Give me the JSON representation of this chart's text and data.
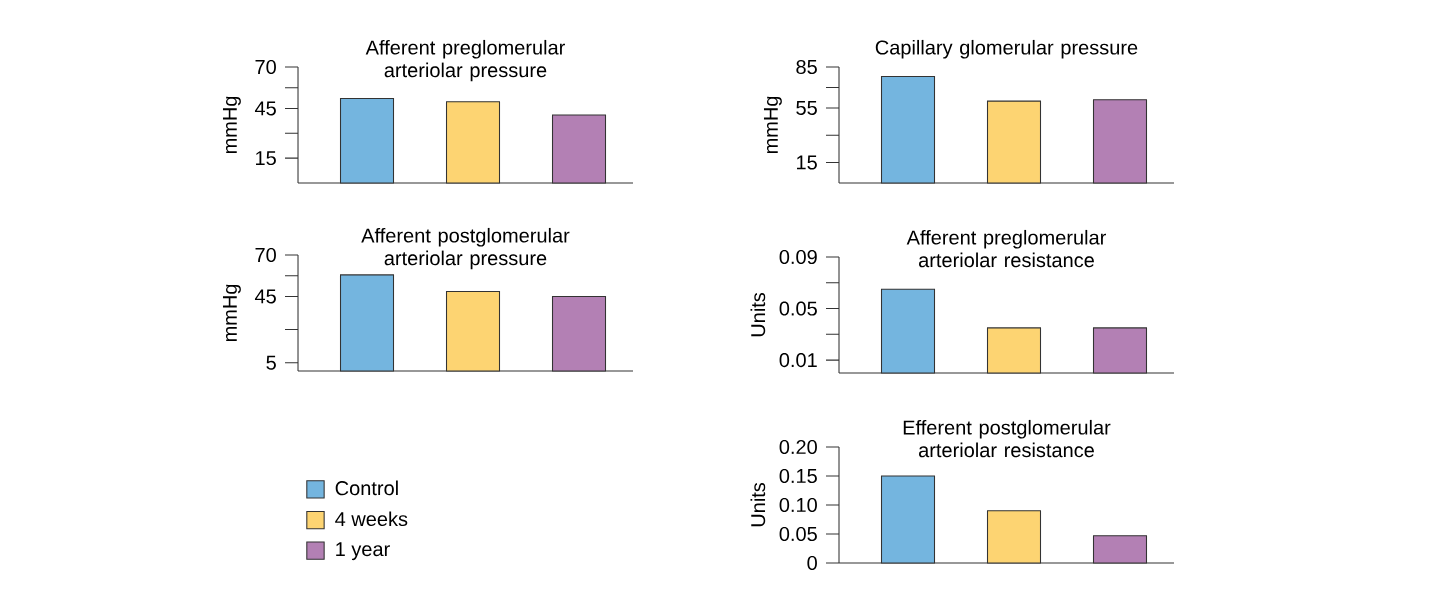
{
  "chart_data": [
    {
      "type": "bar",
      "title": "Afferent preglomerular arteriolar pressure",
      "ylabel": "mmHg",
      "categories": [
        null
      ],
      "ylim": [
        0,
        70
      ],
      "yticks": [
        15,
        {
          "value": 30,
          "label": null
        },
        45,
        {
          "value": 57.5,
          "label": null
        },
        70
      ],
      "series": [
        {
          "color": "#74b5df",
          "values": [
            51
          ]
        },
        {
          "color": "#fdd472",
          "values": [
            49
          ]
        },
        {
          "color": "#b380b4",
          "values": [
            41
          ]
        }
      ]
    },
    {
      "type": "bar",
      "title": "Capillary glomerular pressure",
      "ylabel": "mmHg",
      "categories": [
        null
      ],
      "ylim": [
        0,
        85
      ],
      "yticks": [
        15,
        {
          "value": 35,
          "label": null
        },
        55,
        {
          "value": 70,
          "label": null
        },
        85
      ],
      "series": [
        {
          "color": "#74b5df",
          "values": [
            78
          ]
        },
        {
          "color": "#fdd472",
          "values": [
            60
          ]
        },
        {
          "color": "#b380b4",
          "values": [
            61
          ]
        }
      ]
    },
    {
      "type": "bar",
      "title": "Afferent postglomerular arteriolar pressure",
      "ylabel": "mmHg",
      "categories": [
        null
      ],
      "ylim": [
        0,
        70
      ],
      "yticks": [
        5,
        {
          "value": 25,
          "label": null
        },
        45,
        {
          "value": 57.5,
          "label": null
        },
        70
      ],
      "legend": "bottom",
      "series": [
        {
          "name": "Control",
          "color": "#74b5df",
          "values": [
            58
          ]
        },
        {
          "name": "4 weeks",
          "color": "#fdd472",
          "values": [
            48
          ]
        },
        {
          "name": "1 year",
          "color": "#b380b4",
          "values": [
            45
          ]
        }
      ]
    },
    {
      "type": "bar",
      "title": "Afferent preglomerular arteriolar resistance",
      "ylabel": "Units",
      "categories": [
        null
      ],
      "ylim": [
        0,
        0.09
      ],
      "yticks": [
        0.01,
        {
          "value": 0.03,
          "label": null
        },
        0.05,
        {
          "value": 0.07,
          "label": null
        },
        0.09
      ],
      "series": [
        {
          "color": "#74b5df",
          "values": [
            0.065
          ]
        },
        {
          "color": "#fdd472",
          "values": [
            0.035
          ]
        },
        {
          "color": "#b380b4",
          "values": [
            0.035
          ]
        }
      ]
    },
    {
      "type": "bar",
      "title": "Efferent postglomerular arteriolar resistance",
      "ylabel": "Units",
      "categories": [
        null
      ],
      "ylim": [
        0,
        0.2
      ],
      "yticks": [
        0,
        0.05,
        {
          "value": 0.1,
          "label": "0.10"
        },
        0.15,
        {
          "value": 0.2,
          "label": "0.20"
        }
      ],
      "series": [
        {
          "color": "#74b5df",
          "values": [
            0.15
          ]
        },
        {
          "color": "#fdd472",
          "values": [
            0.09
          ]
        },
        {
          "color": "#b380b4",
          "values": [
            0.047
          ]
        }
      ]
    }
  ]
}
